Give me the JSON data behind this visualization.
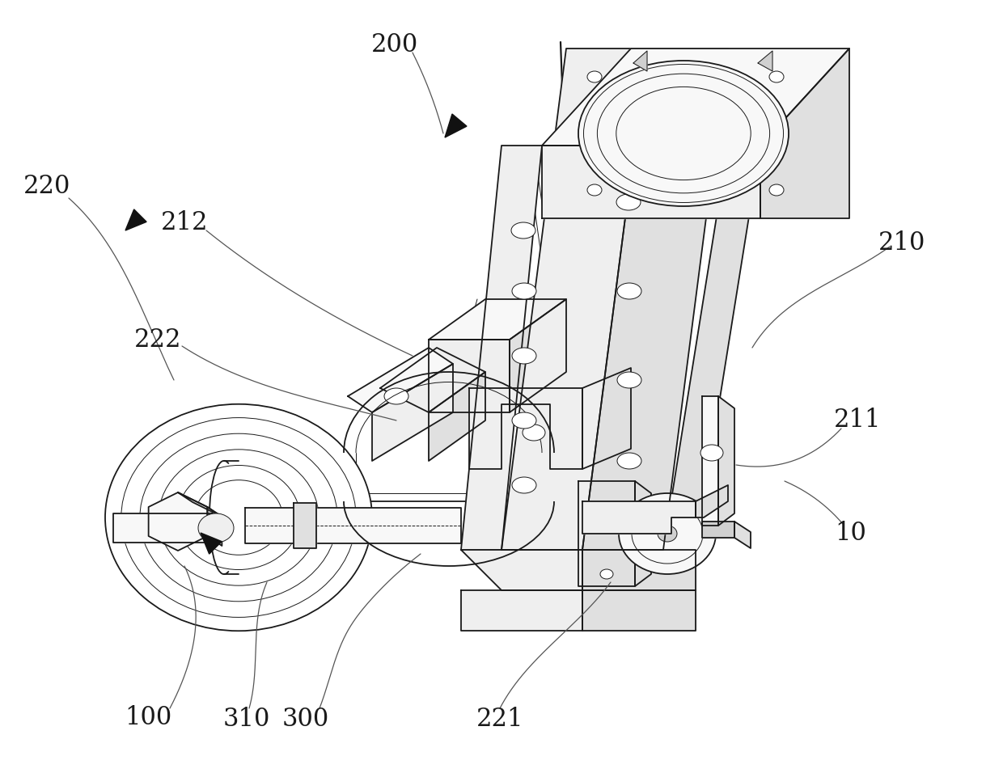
{
  "bg_color": "#ffffff",
  "line_color": "#1a1a1a",
  "label_color": "#1a1a1a",
  "label_fontsize": 22,
  "leader_color": "#555555",
  "leader_lw": 0.9,
  "lw_main": 1.3,
  "lw_thin": 0.7,
  "fill_light": "#f8f8f8",
  "fill_mid": "#efefef",
  "fill_dark": "#e0e0e0",
  "fill_darker": "#d0d0d0"
}
